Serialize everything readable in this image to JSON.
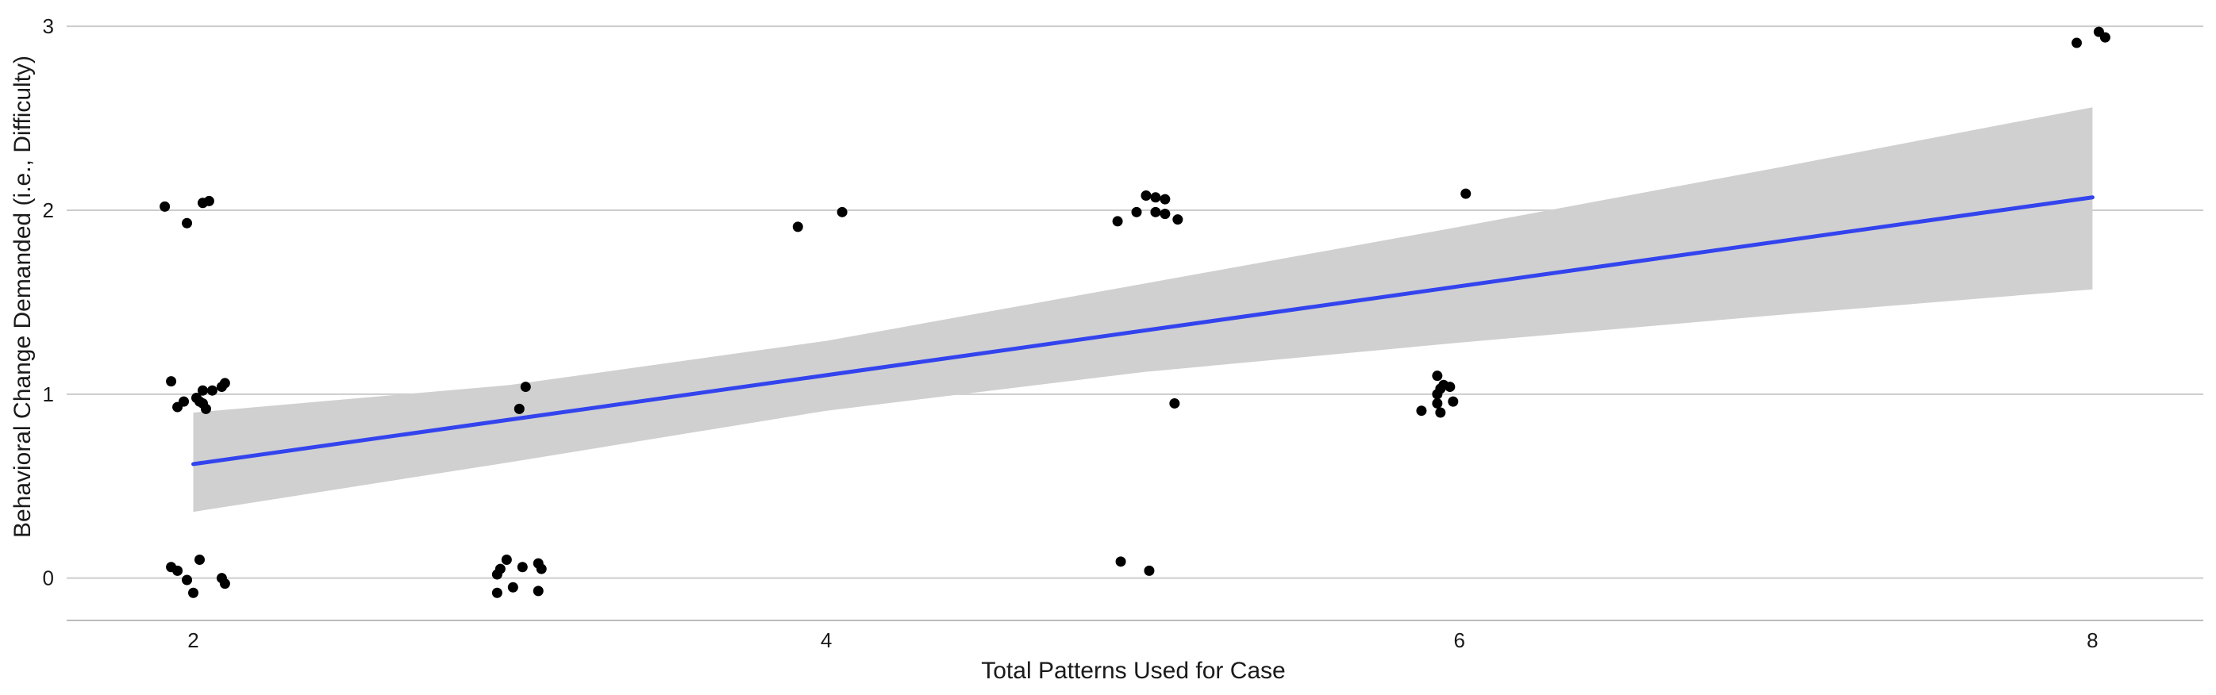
{
  "chart_data": {
    "type": "scatter",
    "title": "",
    "xlabel": "Total Patterns Used for Case",
    "ylabel": "Behavioral Change Demanded (i.e., Difficulty)",
    "xlim": [
      1.6,
      8.35
    ],
    "ylim": [
      -0.23,
      3.1
    ],
    "x_ticks": [
      2,
      4,
      6,
      8
    ],
    "y_ticks": [
      0,
      1,
      2,
      3
    ],
    "grid": "horizontal-major",
    "legend": "none",
    "colors": {
      "points": "#000000",
      "fit_line": "#3344ee",
      "ribbon": "#d0d0d0",
      "grid": "#cccccc"
    },
    "points": [
      {
        "x": 1.91,
        "y": 2.02
      },
      {
        "x": 1.98,
        "y": 1.93
      },
      {
        "x": 2.03,
        "y": 2.04
      },
      {
        "x": 2.05,
        "y": 2.05
      },
      {
        "x": 1.93,
        "y": 1.07
      },
      {
        "x": 1.97,
        "y": 0.96
      },
      {
        "x": 1.95,
        "y": 0.93
      },
      {
        "x": 2.01,
        "y": 0.98
      },
      {
        "x": 2.02,
        "y": 0.96
      },
      {
        "x": 2.03,
        "y": 1.02
      },
      {
        "x": 2.03,
        "y": 0.95
      },
      {
        "x": 2.04,
        "y": 0.92
      },
      {
        "x": 2.06,
        "y": 1.02
      },
      {
        "x": 2.09,
        "y": 1.04
      },
      {
        "x": 2.1,
        "y": 1.06
      },
      {
        "x": 1.93,
        "y": 0.06
      },
      {
        "x": 1.95,
        "y": 0.04
      },
      {
        "x": 2.02,
        "y": 0.1
      },
      {
        "x": 1.98,
        "y": -0.01
      },
      {
        "x": 2.0,
        "y": -0.08
      },
      {
        "x": 2.09,
        "y": 0.0
      },
      {
        "x": 2.1,
        "y": -0.03
      },
      {
        "x": 3.03,
        "y": 0.92
      },
      {
        "x": 3.05,
        "y": 1.04
      },
      {
        "x": 2.96,
        "y": 0.02
      },
      {
        "x": 2.97,
        "y": 0.05
      },
      {
        "x": 2.99,
        "y": 0.1
      },
      {
        "x": 2.96,
        "y": -0.08
      },
      {
        "x": 3.01,
        "y": -0.05
      },
      {
        "x": 3.04,
        "y": 0.06
      },
      {
        "x": 3.09,
        "y": 0.08
      },
      {
        "x": 3.1,
        "y": 0.05
      },
      {
        "x": 3.09,
        "y": -0.07
      },
      {
        "x": 3.91,
        "y": 1.91
      },
      {
        "x": 4.05,
        "y": 1.99
      },
      {
        "x": 4.92,
        "y": 1.94
      },
      {
        "x": 4.98,
        "y": 1.99
      },
      {
        "x": 5.01,
        "y": 2.08
      },
      {
        "x": 5.04,
        "y": 2.07
      },
      {
        "x": 5.04,
        "y": 1.99
      },
      {
        "x": 5.07,
        "y": 2.06
      },
      {
        "x": 5.07,
        "y": 1.98
      },
      {
        "x": 5.11,
        "y": 1.95
      },
      {
        "x": 5.1,
        "y": 0.95
      },
      {
        "x": 4.93,
        "y": 0.09
      },
      {
        "x": 5.02,
        "y": 0.04
      },
      {
        "x": 6.02,
        "y": 2.09
      },
      {
        "x": 5.93,
        "y": 1.1
      },
      {
        "x": 5.94,
        "y": 1.03
      },
      {
        "x": 5.95,
        "y": 1.05
      },
      {
        "x": 5.97,
        "y": 1.04
      },
      {
        "x": 5.93,
        "y": 1.0
      },
      {
        "x": 5.93,
        "y": 0.95
      },
      {
        "x": 5.88,
        "y": 0.91
      },
      {
        "x": 5.94,
        "y": 0.9
      },
      {
        "x": 5.98,
        "y": 0.96
      },
      {
        "x": 7.95,
        "y": 2.91
      },
      {
        "x": 8.02,
        "y": 2.97
      },
      {
        "x": 8.04,
        "y": 2.94
      }
    ],
    "fit": {
      "method": "linear",
      "x": [
        2,
        8
      ],
      "y": [
        0.62,
        2.07
      ],
      "ci": [
        {
          "x": 2,
          "lower": 0.36,
          "upper": 0.9
        },
        {
          "x": 3,
          "lower": 0.63,
          "upper": 1.05
        },
        {
          "x": 4,
          "lower": 0.91,
          "upper": 1.29
        },
        {
          "x": 5,
          "lower": 1.12,
          "upper": 1.6
        },
        {
          "x": 6,
          "lower": 1.28,
          "upper": 1.91
        },
        {
          "x": 7,
          "lower": 1.43,
          "upper": 2.23
        },
        {
          "x": 8,
          "lower": 1.57,
          "upper": 2.56
        }
      ]
    }
  }
}
